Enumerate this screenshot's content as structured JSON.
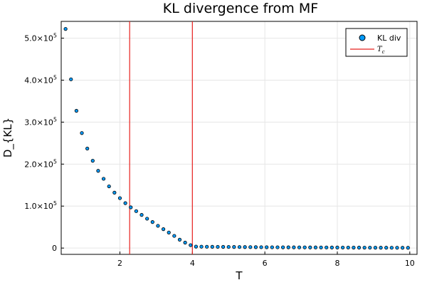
{
  "chart_data": {
    "type": "scatter",
    "title": "KL divergence from MF",
    "xlabel": "T",
    "ylabel": "D_{KL}",
    "xlim": [
      0.38,
      10.2
    ],
    "ylim": [
      -15000,
      540000
    ],
    "x_ticks": [
      2,
      4,
      6,
      8,
      10
    ],
    "y_ticks": [
      {
        "value": 0,
        "label": "0",
        "mantissa": "",
        "exp": ""
      },
      {
        "value": 100000,
        "label": "",
        "mantissa": "1.0×10",
        "exp": "5"
      },
      {
        "value": 200000,
        "label": "",
        "mantissa": "2.0×10",
        "exp": "5"
      },
      {
        "value": 300000,
        "label": "",
        "mantissa": "3.0×10",
        "exp": "5"
      },
      {
        "value": 400000,
        "label": "",
        "mantissa": "4.0×10",
        "exp": "5"
      },
      {
        "value": 500000,
        "label": "",
        "mantissa": "5.0×10",
        "exp": "5"
      }
    ],
    "grid": true,
    "legend_position": "top-right",
    "legend": [
      {
        "label": "KL div",
        "marker": "circle",
        "color": "#009AFA"
      },
      {
        "label": "T",
        "subscript": "c",
        "marker": "line",
        "color": "#E8211E"
      }
    ],
    "vlines": [
      2.269,
      4.0
    ],
    "vline_color": "#E8211E",
    "marker_color": "#009AFA",
    "series": [
      {
        "name": "KL div",
        "x": [
          0.5,
          0.65,
          0.8,
          0.95,
          1.1,
          1.25,
          1.4,
          1.55,
          1.7,
          1.85,
          2.0,
          2.15,
          2.3,
          2.45,
          2.6,
          2.75,
          2.9,
          3.05,
          3.2,
          3.35,
          3.5,
          3.65,
          3.8,
          3.95,
          4.1,
          4.25,
          4.4,
          4.55,
          4.7,
          4.85,
          5.0,
          5.15,
          5.3,
          5.45,
          5.6,
          5.75,
          5.9,
          6.05,
          6.2,
          6.35,
          6.5,
          6.65,
          6.8,
          6.95,
          7.1,
          7.25,
          7.4,
          7.55,
          7.7,
          7.85,
          8.0,
          8.15,
          8.3,
          8.45,
          8.6,
          8.75,
          8.9,
          9.05,
          9.2,
          9.35,
          9.5,
          9.65,
          9.8,
          9.95
        ],
        "y": [
          522000,
          402000,
          327000,
          274000,
          237000,
          208000,
          184000,
          165000,
          147000,
          132000,
          119000,
          107000,
          97000,
          88000,
          79000,
          70000,
          62000,
          53000,
          45000,
          37000,
          29000,
          20000,
          13000,
          7000,
          3500,
          3300,
          3100,
          3000,
          2900,
          2800,
          2700,
          2600,
          2500,
          2400,
          2300,
          2200,
          2100,
          2000,
          1900,
          1850,
          1800,
          1750,
          1700,
          1650,
          1600,
          1550,
          1500,
          1450,
          1400,
          1350,
          1300,
          1250,
          1200,
          1150,
          1100,
          1050,
          1000,
          950,
          900,
          850,
          800,
          750,
          700,
          650
        ]
      }
    ]
  }
}
